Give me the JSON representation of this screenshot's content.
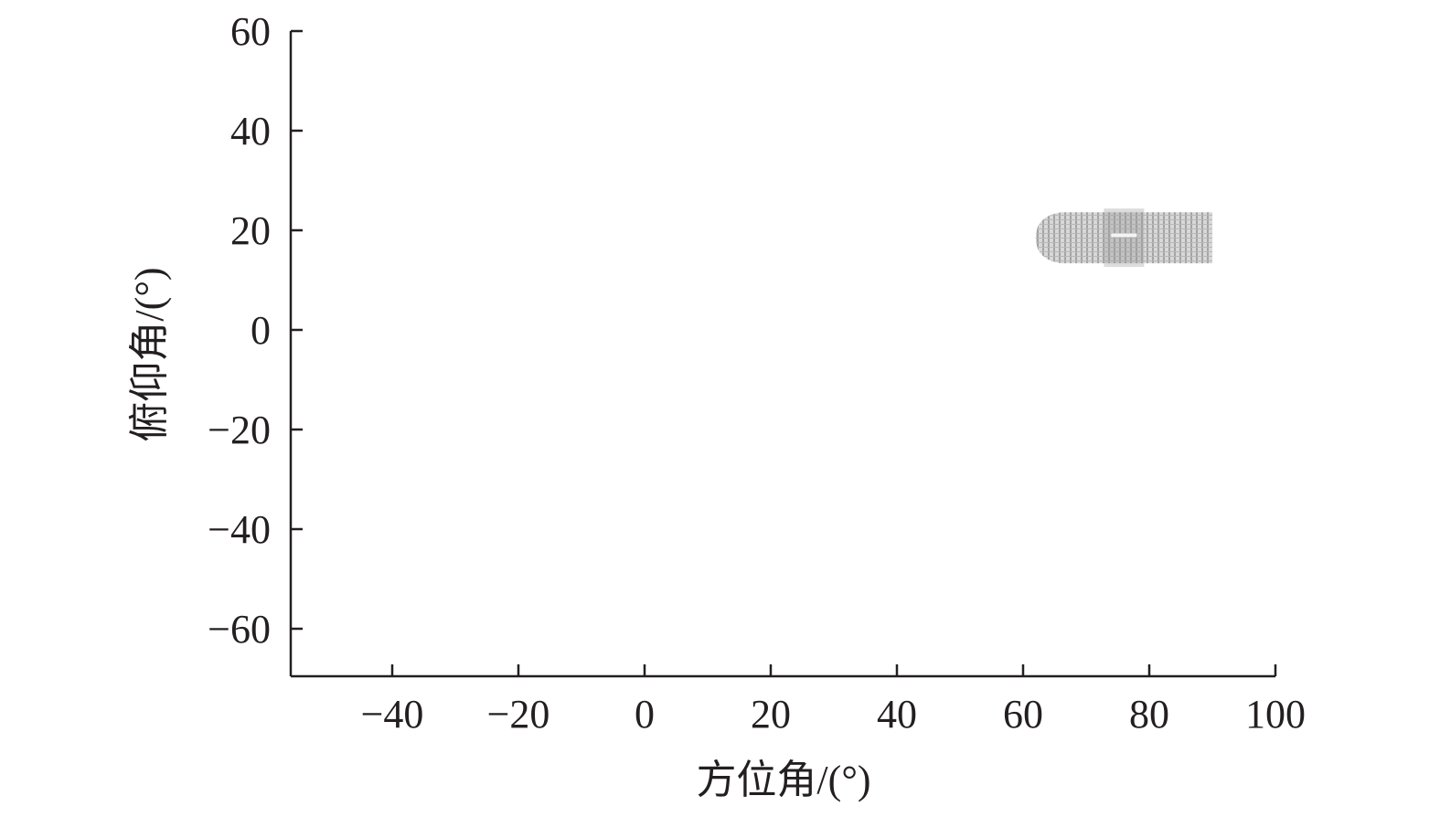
{
  "chart_data": {
    "type": "heatmap",
    "title": "",
    "xlabel": "方位角/(°)",
    "ylabel": "俯仰角/(°)",
    "xlim": [
      -56,
      100
    ],
    "ylim": [
      -70,
      60
    ],
    "xticks": [
      -40,
      -20,
      0,
      20,
      40,
      60,
      80,
      100
    ],
    "yticks": [
      -60,
      -40,
      -20,
      0,
      20,
      40,
      60
    ],
    "xtick_labels": [
      "−40",
      "−20",
      "0",
      "20",
      "40",
      "60",
      "80",
      "100"
    ],
    "ytick_labels": [
      "−60",
      "−40",
      "−20",
      "0",
      "20",
      "40",
      "60"
    ],
    "grid": false,
    "legend": "none",
    "region": {
      "azimuth_range": [
        62,
        90
      ],
      "elevation_range": [
        13,
        24
      ],
      "peak": {
        "azimuth": 76,
        "elevation": 19
      },
      "color": "#8c8c8c"
    }
  }
}
